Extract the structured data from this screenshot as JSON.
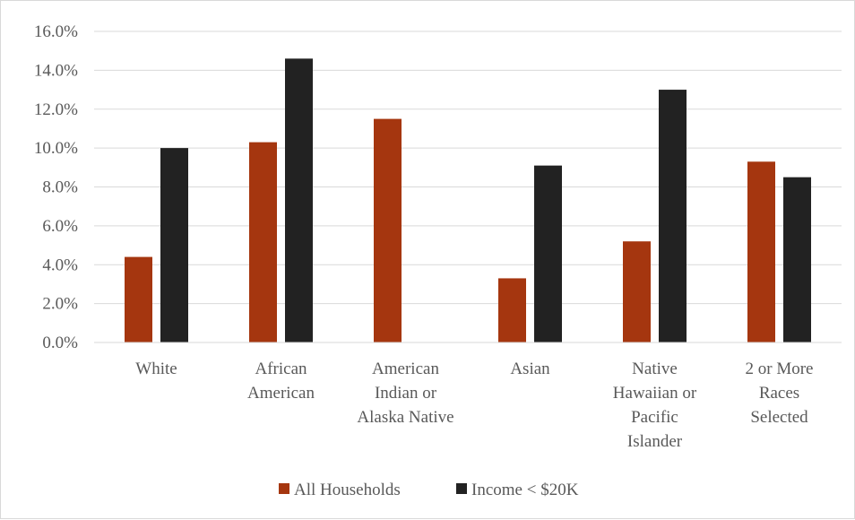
{
  "chart_data": {
    "type": "bar",
    "title": "",
    "xlabel": "",
    "ylabel": "",
    "ylim": [
      0,
      16
    ],
    "y_ticks": [
      "0.0%",
      "2.0%",
      "4.0%",
      "6.0%",
      "8.0%",
      "10.0%",
      "12.0%",
      "14.0%",
      "16.0%"
    ],
    "grid": true,
    "legend_position": "bottom",
    "categories": [
      [
        "White"
      ],
      [
        "African",
        "American"
      ],
      [
        "American",
        "Indian or",
        "Alaska Native"
      ],
      [
        "Asian"
      ],
      [
        "Native",
        "Hawaiian or",
        "Pacific",
        "Islander"
      ],
      [
        "2 or More",
        "Races",
        "Selected"
      ]
    ],
    "series": [
      {
        "name": "All Households",
        "color": "#a5360f",
        "values": [
          4.4,
          10.3,
          11.5,
          3.3,
          5.2,
          9.3
        ]
      },
      {
        "name": "Income < $20K",
        "color": "#222222",
        "values": [
          10.0,
          14.6,
          0.0,
          9.1,
          13.0,
          8.5
        ]
      }
    ]
  }
}
